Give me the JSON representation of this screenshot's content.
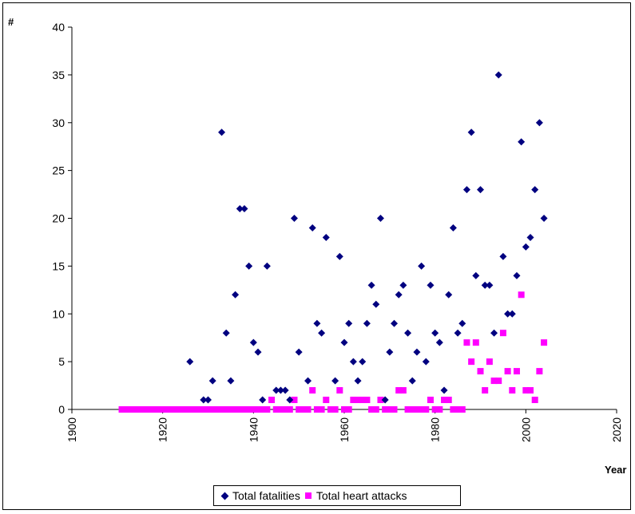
{
  "chart_data": {
    "type": "scatter",
    "ylabel": "#",
    "xlabel": "Year",
    "xlim": [
      1900,
      2020
    ],
    "ylim": [
      0,
      40
    ],
    "xticks": [
      "1900",
      "1920",
      "1940",
      "1960",
      "1980",
      "2000",
      "2020"
    ],
    "yticks": [
      "0",
      "5",
      "10",
      "15",
      "20",
      "25",
      "30",
      "35",
      "40"
    ],
    "grid": false,
    "legend_position": "bottom",
    "series": [
      {
        "name": "Total fatalities",
        "color": "#000080",
        "marker": "diamond",
        "x": [
          1926,
          1929,
          1930,
          1931,
          1933,
          1934,
          1935,
          1936,
          1937,
          1938,
          1939,
          1940,
          1941,
          1942,
          1943,
          1945,
          1946,
          1947,
          1948,
          1949,
          1950,
          1952,
          1953,
          1954,
          1955,
          1956,
          1958,
          1959,
          1960,
          1961,
          1962,
          1963,
          1964,
          1965,
          1966,
          1967,
          1968,
          1969,
          1970,
          1971,
          1972,
          1973,
          1974,
          1975,
          1976,
          1977,
          1978,
          1979,
          1980,
          1981,
          1982,
          1983,
          1984,
          1985,
          1986,
          1987,
          1988,
          1989,
          1990,
          1991,
          1992,
          1993,
          1994,
          1995,
          1996,
          1997,
          1998,
          1999,
          2000,
          2001,
          2002,
          2003,
          2004
        ],
        "y": [
          5,
          1,
          1,
          3,
          29,
          8,
          3,
          12,
          21,
          21,
          15,
          7,
          6,
          1,
          15,
          2,
          2,
          2,
          1,
          20,
          6,
          3,
          19,
          9,
          8,
          18,
          3,
          16,
          7,
          9,
          5,
          3,
          5,
          9,
          13,
          11,
          20,
          1,
          6,
          9,
          12,
          13,
          8,
          3,
          6,
          15,
          5,
          13,
          8,
          7,
          2,
          12,
          19,
          8,
          9,
          23,
          29,
          14,
          23,
          13,
          13,
          8,
          35,
          16,
          10,
          10,
          14,
          28,
          17,
          18,
          23,
          30,
          20
        ]
      },
      {
        "name": "Total heart attacks",
        "color": "#ff00ff",
        "marker": "square",
        "x": [
          1911,
          1912,
          1913,
          1914,
          1915,
          1916,
          1917,
          1918,
          1919,
          1920,
          1921,
          1922,
          1923,
          1924,
          1925,
          1926,
          1927,
          1928,
          1929,
          1930,
          1931,
          1932,
          1933,
          1934,
          1935,
          1936,
          1937,
          1938,
          1939,
          1940,
          1941,
          1942,
          1943,
          1944,
          1945,
          1946,
          1947,
          1948,
          1949,
          1950,
          1951,
          1952,
          1953,
          1954,
          1955,
          1956,
          1957,
          1958,
          1959,
          1960,
          1961,
          1962,
          1963,
          1964,
          1965,
          1966,
          1967,
          1968,
          1969,
          1970,
          1971,
          1972,
          1973,
          1974,
          1975,
          1976,
          1977,
          1978,
          1979,
          1980,
          1981,
          1982,
          1983,
          1984,
          1985,
          1986,
          1987,
          1988,
          1989,
          1990,
          1991,
          1992,
          1993,
          1994,
          1995,
          1996,
          1997,
          1998,
          1999,
          2000,
          2001,
          2002,
          2003,
          2004
        ],
        "y": [
          0,
          0,
          0,
          0,
          0,
          0,
          0,
          0,
          0,
          0,
          0,
          0,
          0,
          0,
          0,
          0,
          0,
          0,
          0,
          0,
          0,
          0,
          0,
          0,
          0,
          0,
          0,
          0,
          0,
          0,
          0,
          0,
          0,
          1,
          0,
          0,
          0,
          0,
          1,
          0,
          0,
          0,
          2,
          0,
          0,
          1,
          0,
          0,
          2,
          0,
          0,
          1,
          1,
          1,
          1,
          0,
          0,
          1,
          0,
          0,
          0,
          2,
          2,
          0,
          0,
          0,
          0,
          0,
          1,
          0,
          0,
          1,
          1,
          0,
          0,
          0,
          7,
          5,
          7,
          4,
          2,
          5,
          3,
          3,
          8,
          4,
          2,
          4,
          12,
          2,
          2,
          1,
          4,
          7
        ]
      }
    ]
  }
}
